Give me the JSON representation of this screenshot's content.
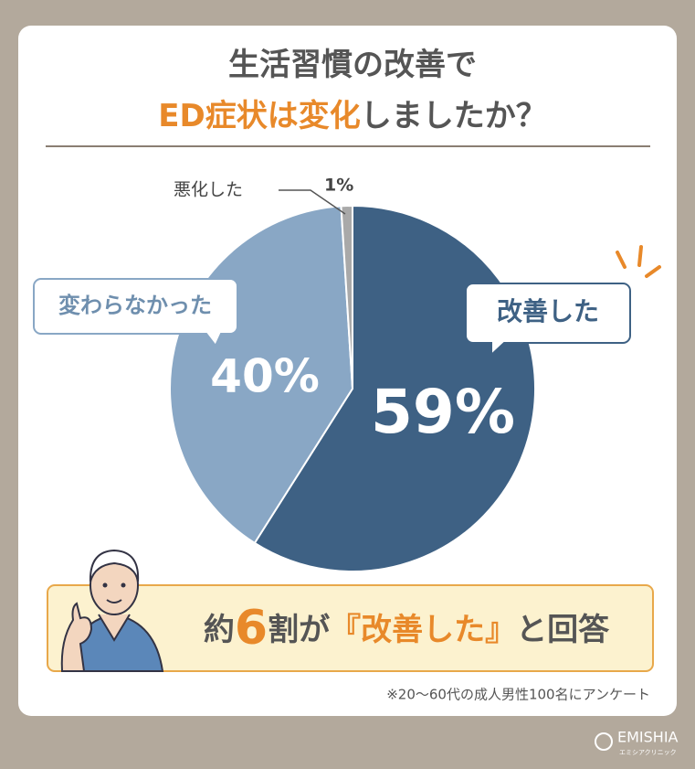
{
  "chart_data": {
    "type": "pie",
    "title_lines": [
      [
        {
          "text": "生活習慣の改善で"
        }
      ],
      [
        {
          "text": "ED症状は変化",
          "highlight": true
        },
        {
          "text": "しましたか？"
        }
      ]
    ],
    "categories": [
      "改善した",
      "変わらなかった",
      "悪化した"
    ],
    "values": [
      59,
      40,
      1
    ],
    "value_labels": [
      "59%",
      "40%",
      "1%"
    ],
    "colors": [
      "#3e6184",
      "#89a7c5",
      "#a9a9a9"
    ],
    "start_angle": -90,
    "direction": "clockwise",
    "callout": [
      {
        "text": "約"
      },
      {
        "text": "6",
        "highlight": true,
        "large": true
      },
      {
        "text": "割が"
      },
      {
        "text": "『改善した』",
        "highlight": true
      },
      {
        "text": "と回答"
      }
    ],
    "footnote": "※20〜60代の成人男性100名にアンケート"
  },
  "brand": {
    "name": "EMISHIA",
    "subtitle": "エミシアクリニック"
  }
}
